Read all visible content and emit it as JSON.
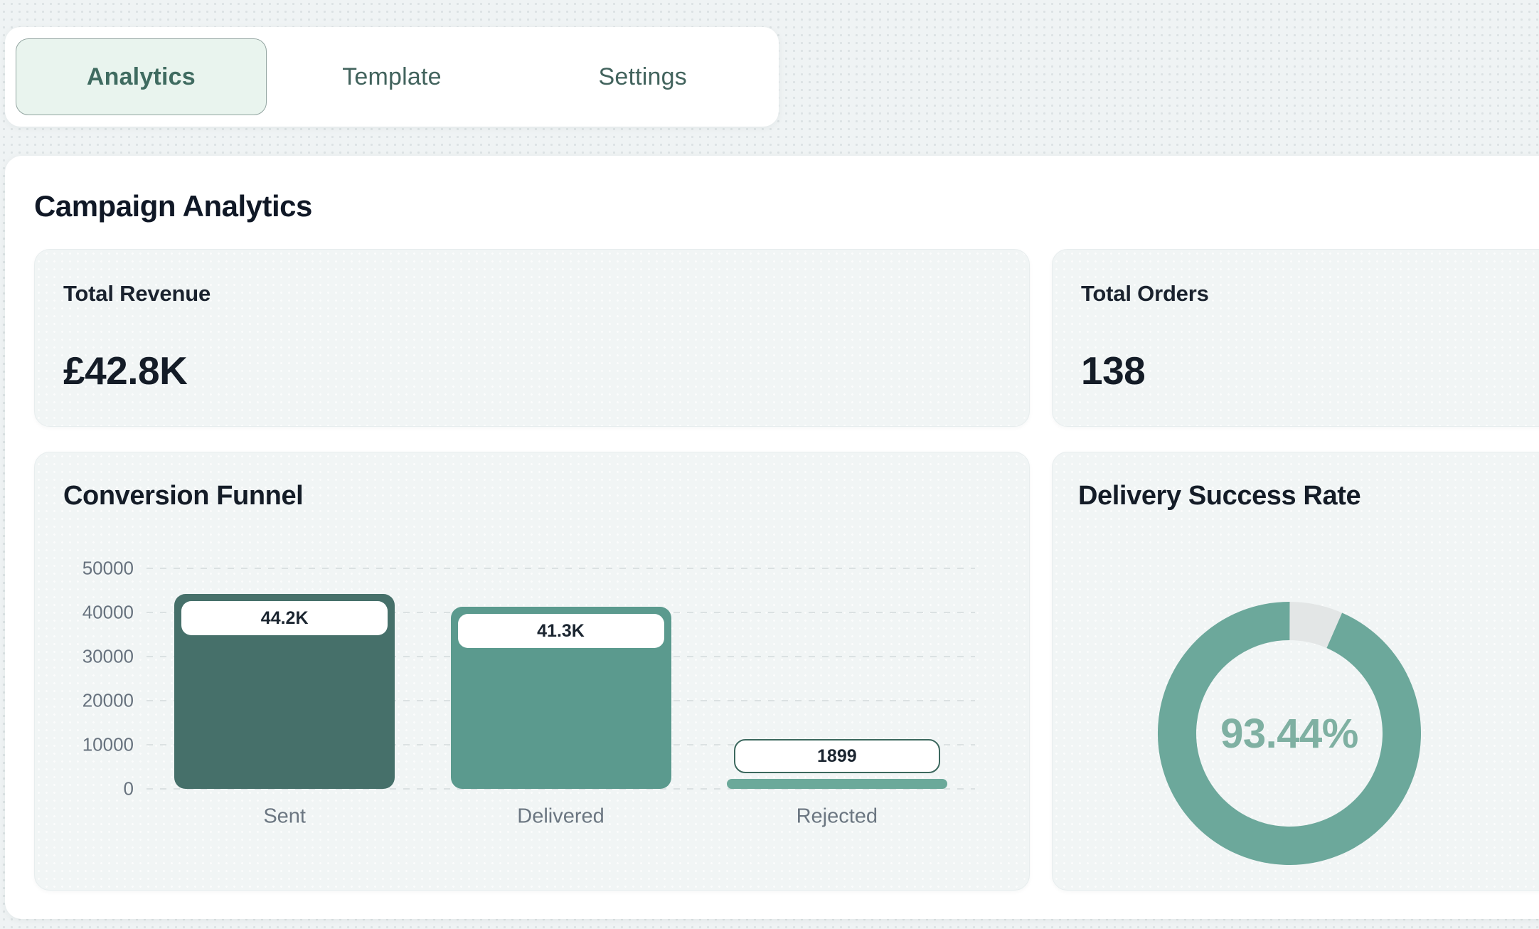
{
  "tabs": {
    "items": [
      {
        "label": "Analytics",
        "active": true
      },
      {
        "label": "Template",
        "active": false
      },
      {
        "label": "Settings",
        "active": false
      }
    ]
  },
  "main": {
    "title": "Campaign Analytics"
  },
  "stats": {
    "revenue": {
      "label": "Total Revenue",
      "value": "£42.8K"
    },
    "orders": {
      "label": "Total Orders",
      "value": "138"
    }
  },
  "colors": {
    "page_bg": "#eff3f4",
    "panel_bg": "#ffffff",
    "card_bg": "#f1f5f5",
    "active_tab_bg": "#e9f4ee",
    "active_tab_text": "#3f6b60",
    "inactive_tab_text": "#42635d",
    "heading_text": "#101826",
    "tick_text": "#67727e",
    "gridline": "#dbe1e2"
  },
  "chart_data": [
    {
      "type": "bar",
      "title": "Conversion Funnel",
      "categories": [
        "Sent",
        "Delivered",
        "Rejected"
      ],
      "values": [
        44200,
        41300,
        1899
      ],
      "value_labels": [
        "44.2K",
        "41.3K",
        "1899"
      ],
      "ylim": [
        0,
        50000
      ],
      "yticks": [
        0,
        10000,
        20000,
        30000,
        40000,
        50000
      ],
      "grid": "dashed-horizontal",
      "legend": "none",
      "bar_colors": [
        "#46706a",
        "#5b9a8e",
        "#6ba99a"
      ]
    },
    {
      "type": "donut",
      "title": "Delivery Success Rate",
      "label": "93.44%",
      "value_pct": 93.44,
      "ring_color": "#6ca89b",
      "track_color": "#e3e6e6",
      "text_color": "#7fb0a2"
    }
  ]
}
